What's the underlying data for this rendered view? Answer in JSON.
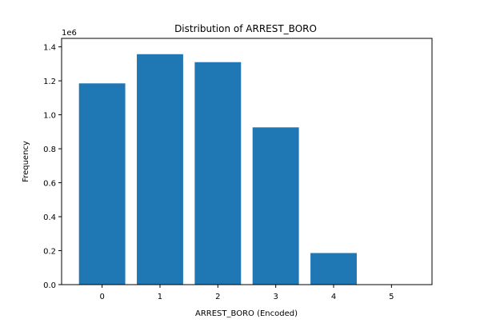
{
  "chart_data": {
    "type": "bar",
    "title": "Distribution of ARREST_BORO",
    "xlabel": "ARREST_BORO (Encoded)",
    "ylabel": "Frequency",
    "y_offset_label": "1e6",
    "categories": [
      "0",
      "1",
      "2",
      "3",
      "4",
      "5"
    ],
    "values": [
      1185000,
      1357000,
      1310000,
      926000,
      186000,
      0
    ],
    "ylim": [
      0,
      1450000
    ],
    "yticks": [
      0,
      200000,
      400000,
      600000,
      800000,
      1000000,
      1200000,
      1400000
    ],
    "ytick_labels": [
      "0.0",
      "0.2",
      "0.4",
      "0.6",
      "0.8",
      "1.0",
      "1.2",
      "1.4"
    ],
    "grid": false,
    "legend": "none",
    "bar_color": "#1f77b4"
  }
}
